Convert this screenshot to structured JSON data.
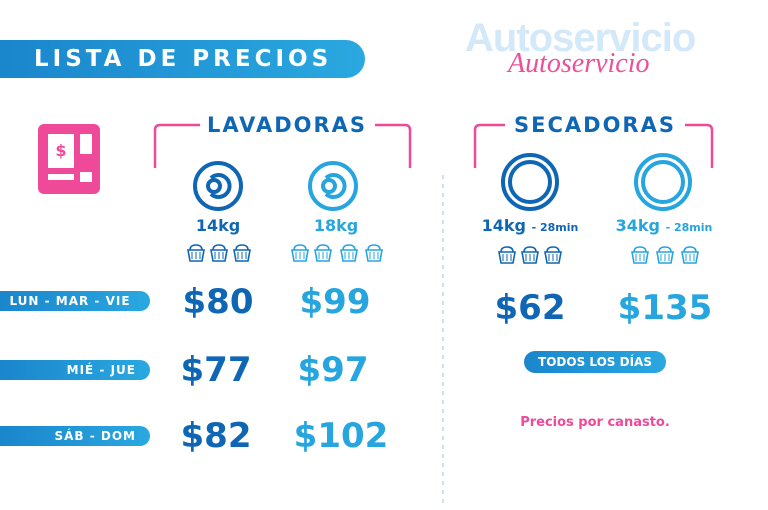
{
  "header": {
    "title": "LISTA DE PRECIOS"
  },
  "logo": {
    "block": "Autoservicio",
    "script": "Autoservicio"
  },
  "lavadoras": {
    "title": "LAVADORAS",
    "machines": [
      {
        "label": "14kg"
      },
      {
        "label": "18kg"
      }
    ],
    "prices": [
      [
        "$80",
        "$99"
      ],
      [
        "$77",
        "$97"
      ],
      [
        "$82",
        "$102"
      ]
    ]
  },
  "secadoras": {
    "title": "SECADORAS",
    "machines": [
      {
        "size": "14kg",
        "time": "- 28min"
      },
      {
        "size": "34kg",
        "time": "- 28min"
      }
    ],
    "prices": [
      "$62",
      "$135"
    ],
    "badge": "TODOS LOS DÍAS",
    "note": "Precios por canasto."
  },
  "days": [
    "LUN - MAR - VIE",
    "MIÉ - JUE",
    "SÁB - DOM"
  ]
}
